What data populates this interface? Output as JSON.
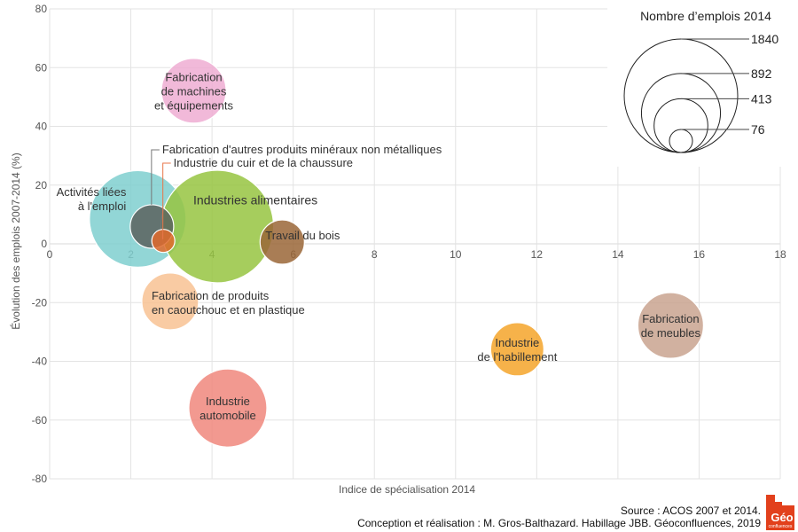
{
  "chart_data": {
    "type": "scatter",
    "subtype": "bubble",
    "title": "",
    "xlabel": "Indice de spécialisation 2014",
    "ylabel": "Évolution des emplois 2007-2014 (%)",
    "xlim": [
      0,
      18
    ],
    "ylim": [
      -80,
      80
    ],
    "xticks": [
      0,
      2,
      4,
      6,
      8,
      10,
      12,
      14,
      16,
      18
    ],
    "yticks": [
      80,
      60,
      40,
      20,
      0,
      -20,
      -40,
      -60,
      -80
    ],
    "grid": true,
    "size_legend": {
      "title": "Nombre d’emplois 2014",
      "placement": "top-right",
      "values": [
        1840,
        892,
        413,
        76
      ]
    },
    "series": [
      {
        "name": "Activités liées à l'emploi",
        "lines": [
          "Activités liées",
          "à l'emploi"
        ],
        "x": 2.17,
        "y": 8.5,
        "size": 1334,
        "color": "#7fcfcf",
        "label_pos": "left"
      },
      {
        "name": "Industries alimentaires",
        "lines": [
          "Industries alimentaires"
        ],
        "x": 4.13,
        "y": 5.9,
        "size": 1811,
        "color": "#96c441",
        "label_pos": "center-top",
        "big": true
      },
      {
        "name": "Fabrication d'autres produits minéraux non métalliques",
        "lines": [
          "Fabrication d'autres produits minéraux non métalliques"
        ],
        "x": 2.52,
        "y": 5.9,
        "size": 270,
        "color": "#5b615e",
        "label_pos": "leader-1"
      },
      {
        "name": "Industrie du cuir et de la chaussure",
        "lines": [
          "Industrie du cuir et de la chaussure"
        ],
        "x": 2.8,
        "y": 1.0,
        "size": 76,
        "color": "#e06a2c",
        "label_pos": "leader-2"
      },
      {
        "name": "Travail du bois",
        "lines": [
          "Travail du bois"
        ],
        "x": 5.73,
        "y": 0.6,
        "size": 281,
        "color": "#9a6637",
        "label_pos": "center-right"
      },
      {
        "name": "Fabrication de machines et équipements",
        "lines": [
          "Fabrication",
          "de machines",
          "et équipements"
        ],
        "x": 3.55,
        "y": 52.1,
        "size": 598,
        "color": "#eeadd2",
        "label_pos": "center"
      },
      {
        "name": "Fabrication de produits en caoutchouc et en plastique",
        "lines": [
          "Fabrication de produits",
          "en caoutchouc et en plastique"
        ],
        "x": 2.97,
        "y": -19.6,
        "size": 460,
        "color": "#f8c293",
        "label_pos": "right"
      },
      {
        "name": "Industrie automobile",
        "lines": [
          "Industrie",
          "automobile"
        ],
        "x": 4.39,
        "y": -55.9,
        "size": 870,
        "color": "#f0877c",
        "label_pos": "center"
      },
      {
        "name": "Industrie de l'habillement",
        "lines": [
          "Industrie",
          "de l'habillement"
        ],
        "x": 11.52,
        "y": -35.9,
        "size": 404,
        "color": "#f4a42a",
        "label_pos": "center"
      },
      {
        "name": "Fabrication de meubles",
        "lines": [
          "Fabrication",
          "de meubles"
        ],
        "x": 15.3,
        "y": -27.8,
        "size": 615,
        "color": "#c9a38f",
        "label_pos": "center"
      }
    ]
  },
  "footer": {
    "source": "Source : ACOS 2007 et 2014.",
    "credits": "Conception et réalisation : M. Gros-Balthazard. Habillage JBB. Géoconfluences, 2019"
  },
  "logo": {
    "text": "Géo",
    "subtext": "confluences",
    "color": "#e2401c"
  }
}
